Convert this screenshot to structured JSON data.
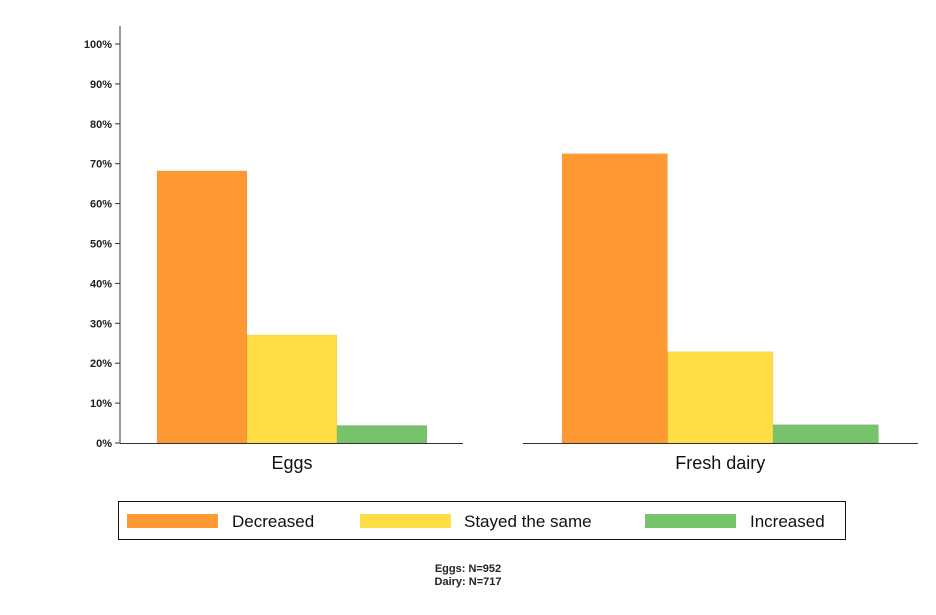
{
  "chart_data": {
    "type": "bar",
    "categories": [
      "Eggs",
      "Fresh dairy"
    ],
    "series": [
      {
        "name": "Decreased",
        "values": [
          68.2,
          72.5
        ],
        "color": "#ff9933"
      },
      {
        "name": "Stayed the same",
        "values": [
          27.1,
          22.9
        ],
        "color": "#ffdd44"
      },
      {
        "name": "Increased",
        "values": [
          4.4,
          4.6
        ],
        "color": "#77c36b"
      }
    ],
    "ylim": [
      0,
      100
    ],
    "yticks": [
      "0%",
      "10%",
      "20%",
      "30%",
      "40%",
      "50%",
      "60%",
      "70%",
      "80%",
      "90%",
      "100%"
    ],
    "legend_position": "bottom",
    "grid": false
  },
  "notes": [
    "Eggs: N=952",
    "Dairy: N=717"
  ]
}
